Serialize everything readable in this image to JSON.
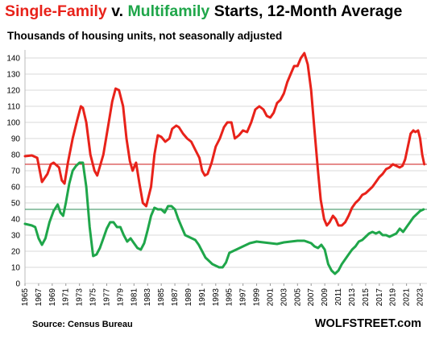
{
  "title": {
    "part1": "Single-Family",
    "part2": " v. ",
    "part3": "Multifamily",
    "part4": " Starts, 12-Month Average"
  },
  "subtitle": "Thousands of housing units, not seasonally adjusted",
  "source": "Source: Census Bureau",
  "brand": "WOLFSTREET.com",
  "colors": {
    "single_family": "#e8221a",
    "multifamily": "#1fa64a",
    "sf_hline": "#cc1a1a",
    "mf_hline": "#2e8b57",
    "grid": "#d9d9d9"
  },
  "chart_data": {
    "type": "line",
    "title": "Single-Family v. Multifamily Starts, 12-Month Average",
    "ylabel": "Thousands of housing units, not seasonally adjusted",
    "xlabel": "",
    "ylim": [
      0,
      145
    ],
    "xlim": [
      1965,
      2024
    ],
    "grid": "horizontal",
    "y_ticks": [
      "0",
      "10",
      "20",
      "30",
      "40",
      "50",
      "60",
      "70",
      "80",
      "90",
      "100",
      "110",
      "120",
      "130",
      "140"
    ],
    "x_ticks": [
      "1965",
      "1967",
      "1969",
      "1971",
      "1973",
      "1975",
      "1977",
      "1979",
      "1981",
      "1983",
      "1985",
      "1987",
      "1989",
      "1991",
      "1993",
      "1995",
      "1997",
      "1999",
      "2001",
      "2003",
      "2005",
      "2007",
      "2009",
      "2011",
      "2013",
      "2015",
      "2017",
      "2019",
      "2021",
      "2023"
    ],
    "reference_lines": [
      {
        "series": "Single-Family",
        "y": 74
      },
      {
        "series": "Multifamily",
        "y": 46
      }
    ],
    "series": [
      {
        "name": "Single-Family",
        "x": [
          1965,
          1966,
          1966.8,
          1967.5,
          1968.3,
          1968.8,
          1969.2,
          1970,
          1970.4,
          1970.8,
          1971.3,
          1972,
          1972.7,
          1973.2,
          1973.5,
          1974,
          1974.6,
          1975.2,
          1975.6,
          1976.5,
          1977.3,
          1977.8,
          1978.3,
          1978.8,
          1979.4,
          1979.9,
          1980.4,
          1980.8,
          1981.3,
          1981.8,
          1982.3,
          1982.8,
          1983.5,
          1984,
          1984.5,
          1985,
          1985.6,
          1986.2,
          1986.6,
          1987.2,
          1987.6,
          1988.2,
          1988.8,
          1989.4,
          1990,
          1990.6,
          1991,
          1991.4,
          1991.8,
          1992.4,
          1993,
          1993.6,
          1994.2,
          1994.7,
          1995.3,
          1995.8,
          1996.4,
          1997,
          1997.6,
          1998.2,
          1998.8,
          1999.4,
          2000,
          2000.5,
          2001,
          2001.5,
          2002,
          2002.5,
          2003,
          2003.5,
          2004,
          2004.5,
          2005,
          2005.5,
          2006,
          2006.5,
          2007,
          2007.5,
          2008,
          2008.4,
          2008.9,
          2009.3,
          2009.7,
          2010.2,
          2010.6,
          2011,
          2011.5,
          2012,
          2012.5,
          2013,
          2013.5,
          2014,
          2014.5,
          2015,
          2015.5,
          2016,
          2016.5,
          2017,
          2017.5,
          2018,
          2018.5,
          2019,
          2019.5,
          2020,
          2020.4,
          2020.8,
          2021.2,
          2021.6,
          2022,
          2022.3,
          2022.7,
          2023,
          2023.3,
          2023.6
        ],
        "values": [
          79,
          79.5,
          78,
          63,
          68,
          74,
          75,
          72,
          64,
          62,
          75,
          90,
          102,
          110,
          109,
          100,
          80,
          70,
          67,
          80,
          100,
          113,
          121,
          120,
          110,
          90,
          76,
          70,
          75,
          62,
          50,
          48,
          60,
          80,
          92,
          91,
          88,
          90,
          96,
          98,
          97,
          93,
          90,
          88,
          83,
          78,
          70,
          67,
          68,
          75,
          85,
          90,
          97,
          100,
          100,
          90,
          92,
          95,
          94,
          100,
          108,
          110,
          108,
          104,
          103,
          106,
          112,
          114,
          118,
          125,
          130,
          135,
          135,
          140,
          143,
          136,
          120,
          95,
          70,
          52,
          40,
          36,
          38,
          42,
          40,
          36,
          36,
          38,
          42,
          47,
          50,
          52,
          55,
          56,
          58,
          60,
          63,
          66,
          68,
          71,
          72,
          74,
          73,
          72,
          73,
          77,
          85,
          93,
          95,
          94,
          95,
          90,
          80,
          74
        ]
      },
      {
        "name": "Multifamily",
        "x": [
          1965,
          1966,
          1966.5,
          1967,
          1967.5,
          1968,
          1968.6,
          1969.2,
          1969.8,
          1970.2,
          1970.6,
          1971,
          1971.5,
          1972,
          1972.5,
          1973,
          1973.5,
          1974,
          1974.5,
          1975,
          1975.5,
          1976,
          1976.5,
          1977,
          1977.5,
          1978,
          1978.5,
          1979,
          1979.5,
          1980,
          1980.5,
          1981,
          1981.5,
          1982,
          1982.5,
          1983,
          1983.5,
          1984,
          1984.5,
          1985,
          1985.5,
          1986,
          1986.5,
          1987,
          1987.5,
          1988,
          1988.5,
          1989,
          1989.5,
          1990,
          1990.5,
          1991,
          1991.5,
          1992,
          1992.5,
          1993,
          1993.5,
          1994,
          1994.5,
          1995,
          1996,
          1997,
          1998,
          1999,
          2000,
          2001,
          2002,
          2003,
          2004,
          2005,
          2006,
          2007,
          2007.5,
          2008,
          2008.5,
          2009,
          2009.5,
          2010,
          2010.5,
          2011,
          2011.5,
          2012,
          2012.5,
          2013,
          2013.5,
          2014,
          2014.5,
          2015,
          2015.5,
          2016,
          2016.5,
          2017,
          2017.5,
          2018,
          2018.5,
          2019,
          2019.5,
          2020,
          2020.5,
          2021,
          2021.5,
          2022,
          2022.5,
          2023,
          2023.5
        ],
        "values": [
          37,
          36,
          35,
          28,
          24,
          28,
          38,
          45,
          49,
          44,
          42,
          50,
          62,
          70,
          73,
          75,
          75,
          60,
          35,
          17,
          18,
          22,
          28,
          34,
          38,
          38,
          35,
          35,
          30,
          26,
          28,
          25,
          22,
          21,
          25,
          33,
          42,
          47,
          46,
          46,
          44,
          48,
          48,
          46,
          40,
          35,
          30,
          29,
          28,
          27,
          24,
          20,
          16,
          14,
          12,
          11,
          10,
          10,
          13,
          19,
          21,
          23,
          25,
          26,
          25.5,
          25,
          24.5,
          25.5,
          26,
          26.5,
          26.5,
          25,
          23,
          22,
          24,
          21,
          12,
          8,
          6,
          8,
          12,
          15,
          18,
          21,
          23,
          26,
          27,
          29,
          31,
          32,
          31,
          32,
          30,
          30,
          29,
          30,
          31,
          34,
          32,
          35,
          38,
          41,
          43,
          45,
          46
        ]
      }
    ]
  }
}
